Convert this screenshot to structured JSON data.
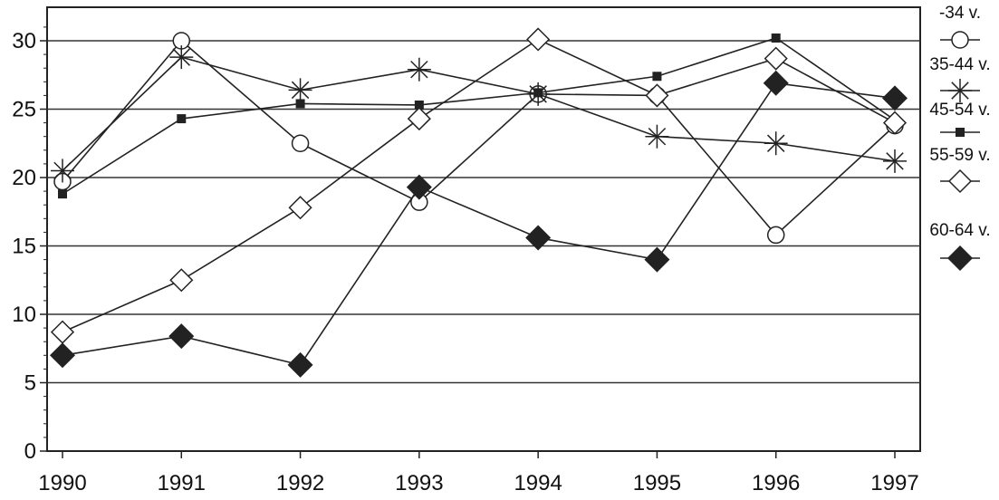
{
  "chart_data": {
    "type": "line",
    "title": "",
    "xlabel": "",
    "ylabel": "",
    "x": [
      "1990",
      "1991",
      "1992",
      "1993",
      "1994",
      "1995",
      "1996",
      "1997"
    ],
    "ylim": [
      0,
      32
    ],
    "yticks": [
      "0",
      "5",
      "10",
      "15",
      "20",
      "25",
      "30"
    ],
    "grid": "horizontal",
    "legend_position": "right",
    "series": [
      {
        "name": "-34 v.",
        "marker": "open-circle",
        "values": [
          19.7,
          30.0,
          22.5,
          18.2,
          26.1,
          26.0,
          15.8,
          23.8
        ]
      },
      {
        "name": "35-44 v.",
        "marker": "star",
        "values": [
          20.5,
          28.8,
          26.4,
          27.9,
          26.1,
          23.0,
          22.5,
          21.2
        ]
      },
      {
        "name": "45-54 v.",
        "marker": "filled-square",
        "values": [
          18.8,
          24.3,
          25.4,
          25.3,
          26.2,
          27.4,
          30.2,
          24.2
        ]
      },
      {
        "name": "55-59 v.",
        "marker": "open-diamond",
        "values": [
          8.7,
          12.5,
          17.8,
          24.3,
          30.1,
          26.0,
          28.7,
          24.0
        ]
      },
      {
        "name": "60-64 v.",
        "marker": "filled-diamond",
        "values": [
          7.0,
          8.4,
          6.3,
          19.3,
          15.6,
          14.0,
          26.9,
          25.8
        ]
      }
    ],
    "colors": {
      "line": "#222222",
      "grid": "#333333"
    }
  }
}
